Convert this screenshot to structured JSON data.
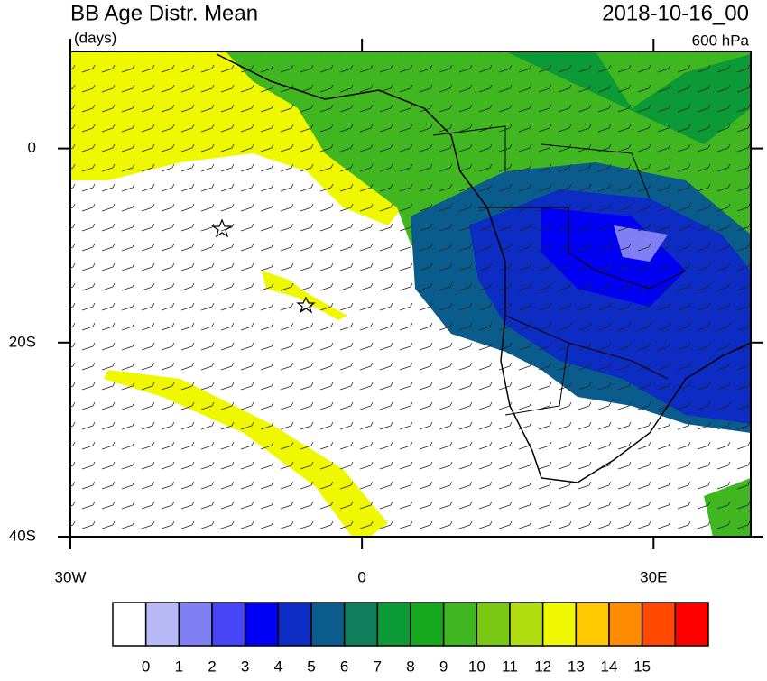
{
  "map": {
    "title": "BB Age Distr. Mean",
    "units": "(days)",
    "date": "2018-10-16_00",
    "level": "600 hPa",
    "xlim": [
      -30,
      40
    ],
    "ylim": [
      -40,
      10
    ],
    "xticks": [
      {
        "value": -30,
        "label": "30W"
      },
      0,
      {
        "value": 30,
        "label": "30E"
      }
    ],
    "yticks": [
      0,
      {
        "value": -20,
        "label": "20S"
      },
      {
        "value": -40,
        "label": "40S"
      }
    ],
    "colorbar": {
      "levels": [
        0,
        1,
        2,
        3,
        4,
        5,
        6,
        7,
        8,
        9,
        10,
        11,
        12,
        13,
        14,
        15
      ],
      "colors": [
        "#ffffff",
        "#b8b8f6",
        "#8080f4",
        "#4646f6",
        "#0000f4",
        "#0c2cc4",
        "#0a5c8c",
        "#0e7e5c",
        "#0c9a36",
        "#16a81c",
        "#40b620",
        "#78c814",
        "#b0dc10",
        "#f0f800",
        "#ffc800",
        "#ff8c00",
        "#ff4800",
        "#ff0000"
      ]
    }
  }
}
